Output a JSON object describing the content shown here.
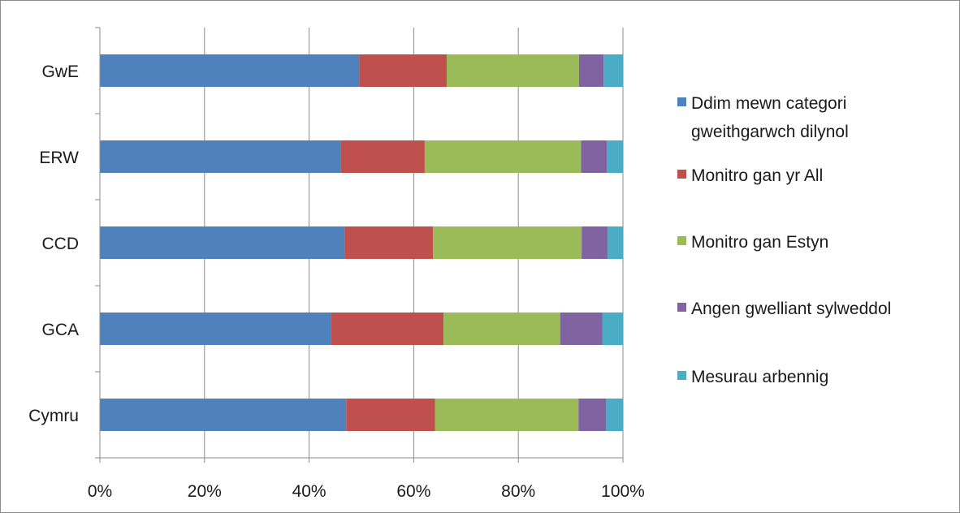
{
  "chart_data": {
    "type": "bar",
    "orientation": "horizontal",
    "stacked": "percent",
    "categories": [
      "GwE",
      "ERW",
      "CCD",
      "GCA",
      "Cymru"
    ],
    "series": [
      {
        "name": "Ddim mewn categori gweithgarwch dilynol",
        "name_lines": [
          "Ddim mewn categori",
          "gweithgarwch dilynol"
        ],
        "color": "#4F81BD",
        "values": [
          49.6,
          46.0,
          46.8,
          44.2,
          47.1
        ]
      },
      {
        "name": "Monitro gan yr All",
        "name_lines": [
          "Monitro gan yr All"
        ],
        "color": "#C0504D",
        "values": [
          16.7,
          16.1,
          16.9,
          21.5,
          17.0
        ]
      },
      {
        "name": "Monitro gan Estyn",
        "name_lines": [
          "Monitro gan Estyn"
        ],
        "color": "#9BBB59",
        "values": [
          25.3,
          29.9,
          28.4,
          22.3,
          27.4
        ]
      },
      {
        "name": "Angen gwelliant sylweddol",
        "name_lines": [
          "Angen gwelliant sylweddol"
        ],
        "color": "#8064A2",
        "values": [
          4.7,
          4.9,
          5.0,
          8.1,
          5.3
        ]
      },
      {
        "name": "Mesurau arbennig",
        "name_lines": [
          "Mesurau arbennig"
        ],
        "color": "#4BACC6",
        "values": [
          3.7,
          3.1,
          2.9,
          3.9,
          3.2
        ]
      }
    ],
    "x_ticks": [
      "0%",
      "20%",
      "40%",
      "60%",
      "80%",
      "100%"
    ],
    "xlim": [
      0,
      100
    ],
    "grid": true,
    "legend_position": "right"
  }
}
